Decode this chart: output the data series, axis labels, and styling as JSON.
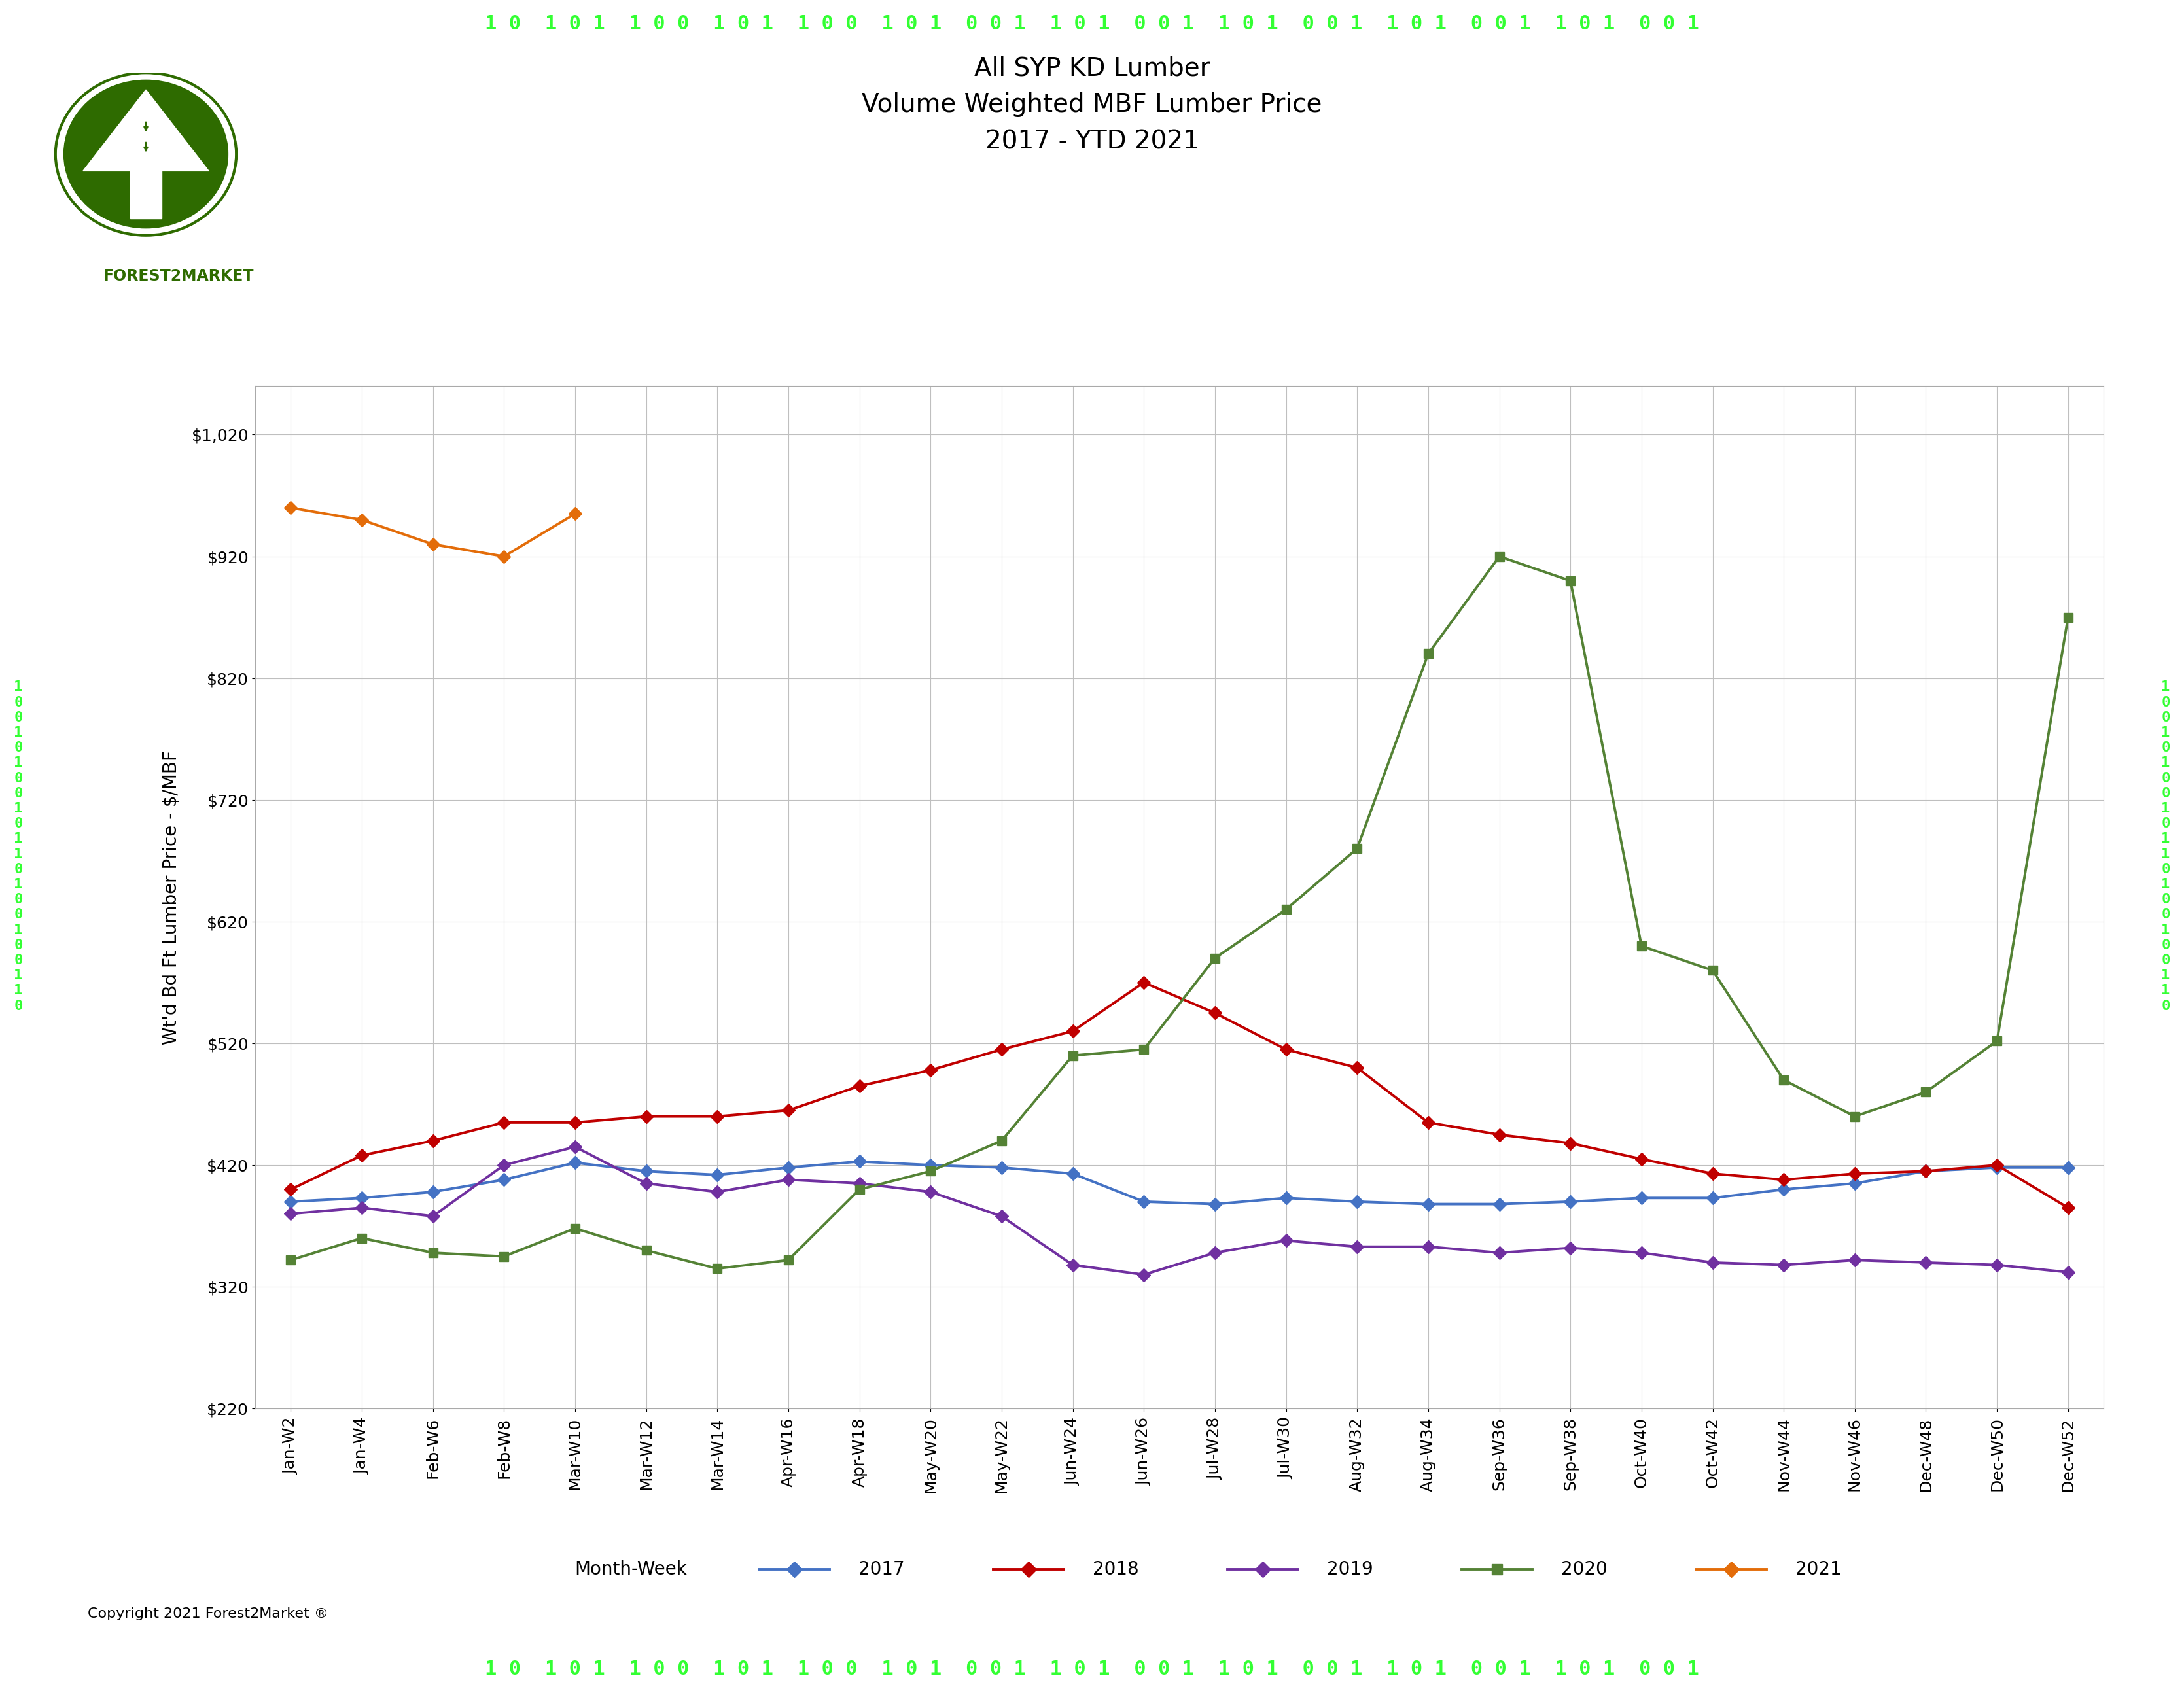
{
  "title": "All SYP KD Lumber\nVolume Weighted MBF Lumber Price\n2017 - YTD 2021",
  "ylabel": "Wt'd Bd Ft Lumber Price - $/MBF",
  "xlabel": "Month-Week",
  "ylim": [
    220,
    1060
  ],
  "yticks": [
    220,
    320,
    420,
    520,
    620,
    720,
    820,
    920,
    1020
  ],
  "ytick_labels": [
    "$220",
    "$320",
    "$420",
    "$520",
    "$620",
    "$720",
    "$820",
    "$920",
    "$1,020"
  ],
  "x_labels": [
    "Jan-W2",
    "Jan-W4",
    "Feb-W6",
    "Feb-W8",
    "Mar-W10",
    "Mar-W12",
    "Mar-W14",
    "Apr-W16",
    "Apr-W18",
    "May-W20",
    "May-W22",
    "Jun-W24",
    "Jun-W26",
    "Jul-W28",
    "Jul-W30",
    "Aug-W32",
    "Aug-W34",
    "Sep-W36",
    "Sep-W38",
    "Oct-W40",
    "Oct-W42",
    "Nov-W44",
    "Nov-W46",
    "Dec-W48",
    "Dec-W50",
    "Dec-W52"
  ],
  "series_2017": {
    "label": "2017",
    "color": "#4472C4",
    "marker": "D",
    "values": [
      390,
      393,
      398,
      408,
      422,
      415,
      412,
      418,
      423,
      420,
      418,
      413,
      390,
      388,
      393,
      390,
      388,
      388,
      390,
      393,
      393,
      400,
      405,
      415,
      418,
      418
    ]
  },
  "series_2018": {
    "label": "2018",
    "color": "#C00000",
    "marker": "D",
    "values": [
      400,
      428,
      440,
      455,
      455,
      460,
      460,
      465,
      485,
      498,
      515,
      530,
      570,
      545,
      515,
      500,
      455,
      445,
      438,
      425,
      413,
      408,
      413,
      415,
      420,
      385
    ]
  },
  "series_2019": {
    "label": "2019",
    "color": "#7030A0",
    "marker": "D",
    "values": [
      380,
      385,
      378,
      420,
      435,
      405,
      398,
      408,
      405,
      398,
      378,
      338,
      330,
      348,
      358,
      353,
      353,
      348,
      352,
      348,
      340,
      338,
      342,
      340,
      338,
      332
    ]
  },
  "series_2020": {
    "label": "2020",
    "color": "#548235",
    "marker": "s",
    "values": [
      342,
      360,
      348,
      345,
      368,
      350,
      335,
      342,
      400,
      415,
      440,
      510,
      515,
      590,
      630,
      680,
      840,
      920,
      900,
      600,
      580,
      490,
      460,
      480,
      522,
      870
    ]
  },
  "series_2021": {
    "label": "2021",
    "color": "#E36C09",
    "marker": "D",
    "values": [
      960,
      950,
      930,
      920,
      955,
      null,
      null,
      null,
      null,
      null,
      null,
      null,
      null,
      null,
      null,
      null,
      null,
      null,
      null,
      null,
      null,
      null,
      null,
      null,
      null,
      null
    ]
  },
  "background_color": "#FFFFFF",
  "grid_color": "#BFBFBF",
  "border_color": "#2E6B00",
  "title_color": "#000000",
  "title_fontsize": 28,
  "axis_label_fontsize": 20,
  "tick_fontsize": 18,
  "legend_fontsize": 20,
  "copyright_text": "Copyright 2021 Forest2Market ®"
}
